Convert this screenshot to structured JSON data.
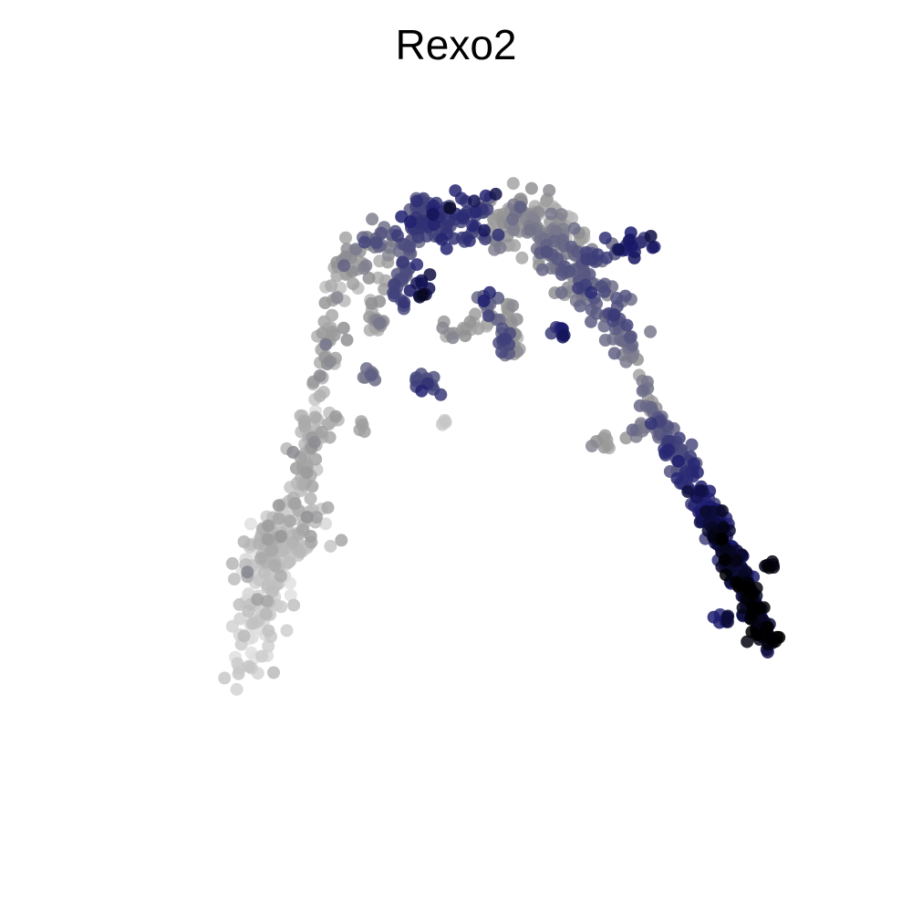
{
  "chart_data": {
    "type": "scatter",
    "title": "Rexo2",
    "xlabel": "",
    "ylabel": "",
    "axes_visible": false,
    "grid": false,
    "legend": "none",
    "xlim": [
      0,
      100
    ],
    "ylim": [
      0,
      100
    ],
    "color_scale": {
      "low": "#e0e0e0",
      "mid": "#1a1a6e",
      "high": "#000000",
      "domain": [
        0,
        1
      ]
    },
    "segments": [
      {
        "name": "left-arm-base",
        "x0": 20,
        "y0": 18,
        "x1": 25,
        "y1": 38,
        "n": 120,
        "spread": 1.8,
        "v0": 0.02,
        "v1": 0.12
      },
      {
        "name": "left-arm-cluster",
        "x0": 22,
        "y0": 34,
        "x1": 28,
        "y1": 40,
        "n": 90,
        "spread": 2.2,
        "v0": 0.12,
        "v1": 0.22
      },
      {
        "name": "left-arm-upper",
        "x0": 27,
        "y0": 42,
        "x1": 33,
        "y1": 75,
        "n": 90,
        "spread": 1.0,
        "v0": 0.2,
        "v1": 0.27
      },
      {
        "name": "left-arm-strand",
        "x0": 26,
        "y0": 47,
        "x1": 32,
        "y1": 55,
        "n": 25,
        "spread": 0.7,
        "v0": 0.2,
        "v1": 0.25
      },
      {
        "name": "top-left-curve",
        "x0": 33,
        "y0": 75,
        "x1": 45,
        "y1": 83,
        "n": 70,
        "spread": 1.3,
        "v0": 0.28,
        "v1": 0.68
      },
      {
        "name": "top-ridge",
        "x0": 42,
        "y0": 82,
        "x1": 52,
        "y1": 82,
        "n": 90,
        "spread": 1.6,
        "v0": 0.6,
        "v1": 0.72
      },
      {
        "name": "top-peak",
        "x0": 52,
        "y0": 82,
        "x1": 62,
        "y1": 81,
        "n": 120,
        "spread": 2.1,
        "v0": 0.38,
        "v1": 0.3
      },
      {
        "name": "right-shoulder",
        "x0": 60,
        "y0": 79,
        "x1": 70,
        "y1": 66,
        "n": 110,
        "spread": 1.5,
        "v0": 0.45,
        "v1": 0.55
      },
      {
        "name": "right-wing",
        "x0": 64,
        "y0": 76,
        "x1": 74,
        "y1": 79,
        "n": 45,
        "spread": 0.8,
        "v0": 0.55,
        "v1": 0.74
      },
      {
        "name": "right-descent",
        "x0": 70,
        "y0": 66,
        "x1": 75,
        "y1": 53,
        "n": 35,
        "spread": 0.6,
        "v0": 0.4,
        "v1": 0.45
      },
      {
        "name": "right-arm-upper",
        "x0": 75,
        "y0": 53,
        "x1": 83,
        "y1": 38,
        "n": 120,
        "spread": 0.8,
        "v0": 0.55,
        "v1": 0.82
      },
      {
        "name": "right-arm-tip",
        "x0": 82,
        "y0": 40,
        "x1": 90,
        "y1": 22,
        "n": 180,
        "spread": 0.8,
        "v0": 0.82,
        "v1": 0.97
      },
      {
        "name": "inner-strand-a",
        "x0": 52,
        "y0": 72,
        "x1": 55,
        "y1": 63,
        "n": 22,
        "spread": 0.6,
        "v0": 0.55,
        "v1": 0.62
      },
      {
        "name": "inner-strand-b",
        "x0": 55,
        "y0": 71,
        "x1": 56,
        "y1": 62,
        "n": 22,
        "spread": 0.5,
        "v0": 0.3,
        "v1": 0.34
      },
      {
        "name": "inner-strand-c",
        "x0": 47,
        "y0": 66,
        "x1": 53,
        "y1": 68,
        "n": 20,
        "spread": 0.7,
        "v0": 0.28,
        "v1": 0.32
      },
      {
        "name": "inner-strand-d",
        "x0": 42,
        "y0": 78,
        "x1": 40,
        "y1": 71,
        "n": 20,
        "spread": 0.7,
        "v0": 0.55,
        "v1": 0.6
      },
      {
        "name": "inner-strand-e",
        "x0": 39,
        "y0": 76,
        "x1": 37,
        "y1": 66,
        "n": 14,
        "spread": 0.6,
        "v0": 0.25,
        "v1": 0.3
      }
    ],
    "clusters": [
      {
        "name": "c1",
        "x": 43.8,
        "y": 72.6,
        "n": 10,
        "spread": 0.7,
        "v": 0.85
      },
      {
        "name": "c2",
        "x": 44,
        "y": 59,
        "n": 12,
        "spread": 0.8,
        "v": 0.65
      },
      {
        "name": "c3",
        "x": 36.8,
        "y": 60.5,
        "n": 8,
        "spread": 0.6,
        "v": 0.5
      },
      {
        "name": "c4",
        "x": 61.8,
        "y": 66.5,
        "n": 8,
        "spread": 0.5,
        "v": 0.75
      },
      {
        "name": "c5",
        "x": 67.3,
        "y": 50.7,
        "n": 8,
        "spread": 0.5,
        "v": 0.3
      },
      {
        "name": "c6",
        "x": 72.5,
        "y": 51.9,
        "n": 10,
        "spread": 0.7,
        "v": 0.45
      },
      {
        "name": "c7",
        "x": 46.8,
        "y": 53.5,
        "n": 4,
        "spread": 0.3,
        "v": 0.1
      },
      {
        "name": "c8",
        "x": 35.8,
        "y": 52.8,
        "n": 4,
        "spread": 0.3,
        "v": 0.25
      },
      {
        "name": "c9",
        "x": 83.5,
        "y": 26.0,
        "n": 8,
        "spread": 0.6,
        "v": 0.8
      },
      {
        "name": "c10",
        "x": 89.5,
        "y": 33.0,
        "n": 6,
        "spread": 0.5,
        "v": 0.95
      },
      {
        "name": "c11",
        "x": 40.5,
        "y": 70.5,
        "n": 6,
        "spread": 0.6,
        "v": 0.65
      },
      {
        "name": "c12",
        "x": 38,
        "y": 67.5,
        "n": 6,
        "spread": 0.5,
        "v": 0.4
      }
    ]
  }
}
